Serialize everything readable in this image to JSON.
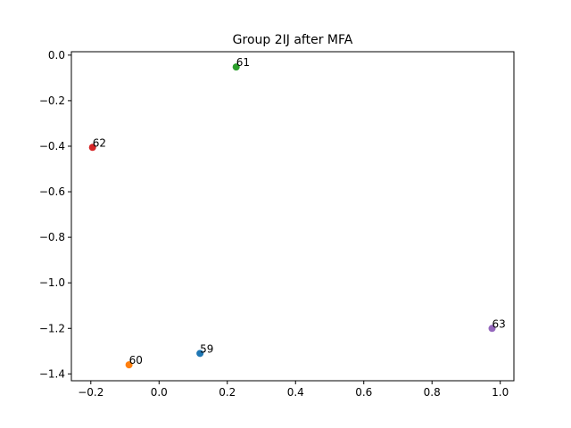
{
  "chart_data": {
    "type": "scatter",
    "title": "Group 2IJ after MFA",
    "xlabel": "",
    "ylabel": "",
    "xlim": [
      -0.257,
      1.04
    ],
    "ylim": [
      -1.43,
      0.015
    ],
    "xticks": [
      -0.2,
      0.0,
      0.2,
      0.4,
      0.6,
      0.8,
      1.0
    ],
    "xtick_labels": [
      "−0.2",
      "0.0",
      "0.2",
      "0.4",
      "0.6",
      "0.8",
      "1.0"
    ],
    "yticks": [
      0.0,
      -0.2,
      -0.4,
      -0.6,
      -0.8,
      -1.0,
      -1.2,
      -1.4
    ],
    "ytick_labels": [
      "0.0",
      "−0.2",
      "−0.4",
      "−0.6",
      "−0.8",
      "−1.0",
      "−1.2",
      "−1.4"
    ],
    "grid": false,
    "points": [
      {
        "label": "59",
        "x": 0.12,
        "y": -1.31,
        "color": "#1f77b4"
      },
      {
        "label": "60",
        "x": -0.088,
        "y": -1.36,
        "color": "#ff7f0e"
      },
      {
        "label": "61",
        "x": 0.226,
        "y": -0.052,
        "color": "#2ca02c"
      },
      {
        "label": "62",
        "x": -0.195,
        "y": -0.405,
        "color": "#d62728"
      },
      {
        "label": "63",
        "x": 0.976,
        "y": -1.2,
        "color": "#9467bd"
      }
    ]
  }
}
